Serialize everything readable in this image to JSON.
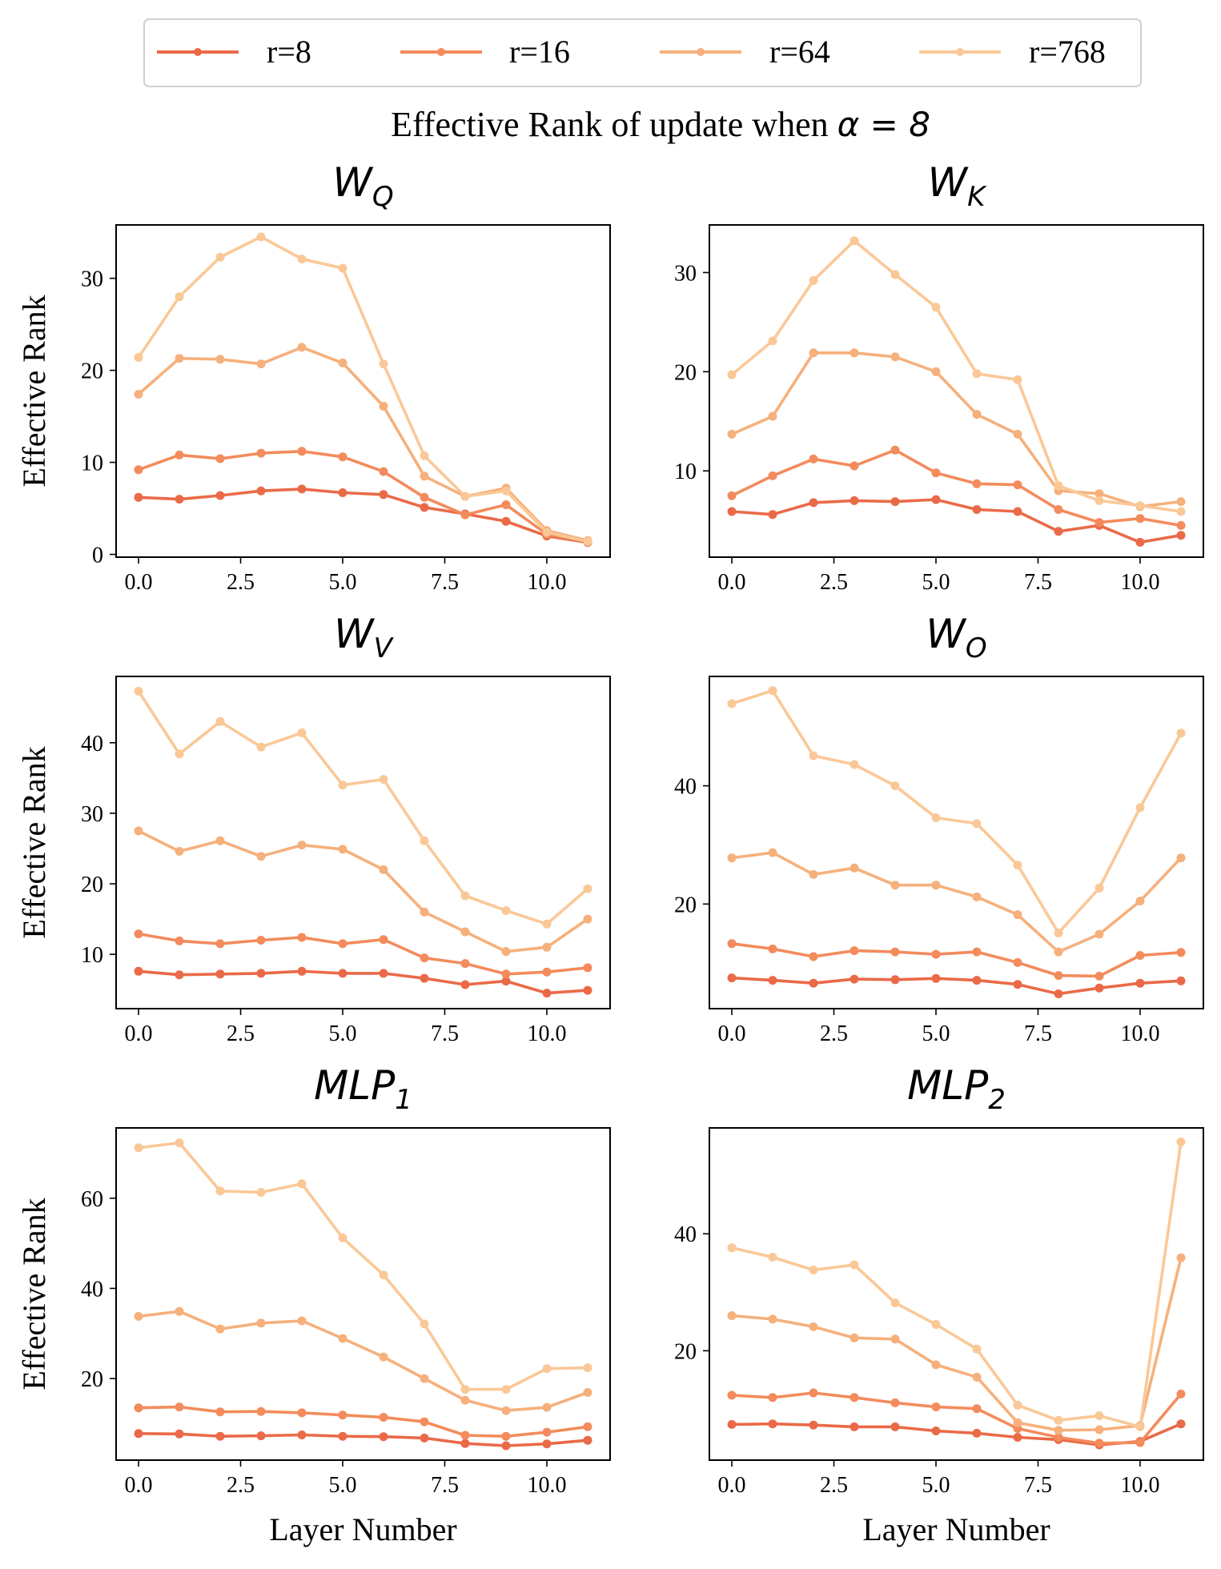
{
  "figure": {
    "title_prefix": "Effective Rank of update when ",
    "title_math": "α = 8"
  },
  "legend": {
    "position": "top-center",
    "entries": [
      {
        "label": "r=8",
        "color": "#ea6a48"
      },
      {
        "label": "r=16",
        "color": "#f38b5c"
      },
      {
        "label": "r=64",
        "color": "#f6b07c"
      },
      {
        "label": "r=768",
        "color": "#fac897"
      }
    ]
  },
  "chart_data": [
    {
      "type": "line",
      "title_base": "W",
      "title_sub": "Q",
      "xlabel": "",
      "ylabel": "Effective Rank",
      "x": [
        0,
        1,
        2,
        3,
        4,
        5,
        6,
        7,
        8,
        9,
        10,
        11
      ],
      "xticks": [
        0,
        2.5,
        5,
        7.5,
        10
      ],
      "xtick_labels": [
        "0.0",
        "2.5",
        "5.0",
        "7.5",
        "10.0"
      ],
      "xlim": [
        -0.55,
        11.55
      ],
      "ylim": [
        -0.3,
        35.8
      ],
      "yticks": [
        0,
        10,
        20,
        30
      ],
      "ytick_labels": [
        "0",
        "10",
        "20",
        "30"
      ],
      "series": [
        {
          "name": "r=8",
          "values": [
            6.2,
            6.0,
            6.4,
            6.9,
            7.1,
            6.7,
            6.5,
            5.1,
            4.4,
            3.6,
            2.0,
            1.3
          ]
        },
        {
          "name": "r=16",
          "values": [
            9.2,
            10.8,
            10.4,
            11.0,
            11.2,
            10.6,
            9.0,
            6.2,
            4.3,
            5.4,
            2.2,
            1.4
          ]
        },
        {
          "name": "r=64",
          "values": [
            17.4,
            21.3,
            21.2,
            20.7,
            22.5,
            20.8,
            16.1,
            8.5,
            6.3,
            7.2,
            2.6,
            1.5
          ]
        },
        {
          "name": "r=768",
          "values": [
            21.4,
            28.0,
            32.3,
            34.5,
            32.1,
            31.1,
            20.7,
            10.7,
            6.3,
            6.9,
            2.4,
            1.4
          ]
        }
      ]
    },
    {
      "type": "line",
      "title_base": "W",
      "title_sub": "K",
      "xlabel": "",
      "ylabel": "",
      "x": [
        0,
        1,
        2,
        3,
        4,
        5,
        6,
        7,
        8,
        9,
        10,
        11
      ],
      "xticks": [
        0,
        2.5,
        5,
        7.5,
        10
      ],
      "xtick_labels": [
        "0.0",
        "2.5",
        "5.0",
        "7.5",
        "10.0"
      ],
      "xlim": [
        -0.55,
        11.55
      ],
      "ylim": [
        1.3,
        34.8
      ],
      "yticks": [
        10,
        20,
        30
      ],
      "ytick_labels": [
        "10",
        "20",
        "30"
      ],
      "series": [
        {
          "name": "r=8",
          "values": [
            5.9,
            5.6,
            6.8,
            7.0,
            6.9,
            7.1,
            6.1,
            5.9,
            3.9,
            4.5,
            2.8,
            3.5
          ]
        },
        {
          "name": "r=16",
          "values": [
            7.5,
            9.5,
            11.2,
            10.5,
            12.1,
            9.8,
            8.7,
            8.6,
            6.1,
            4.8,
            5.2,
            4.5
          ]
        },
        {
          "name": "r=64",
          "values": [
            13.7,
            15.5,
            21.9,
            21.9,
            21.5,
            20.0,
            15.7,
            13.7,
            8.0,
            7.7,
            6.4,
            6.9
          ]
        },
        {
          "name": "r=768",
          "values": [
            19.7,
            23.1,
            29.2,
            33.2,
            29.8,
            26.5,
            19.8,
            19.2,
            8.5,
            7.0,
            6.5,
            5.9
          ]
        }
      ]
    },
    {
      "type": "line",
      "title_base": "W",
      "title_sub": "V",
      "xlabel": "",
      "ylabel": "Effective Rank",
      "x": [
        0,
        1,
        2,
        3,
        4,
        5,
        6,
        7,
        8,
        9,
        10,
        11
      ],
      "xticks": [
        0,
        2.5,
        5,
        7.5,
        10
      ],
      "xtick_labels": [
        "0.0",
        "2.5",
        "5.0",
        "7.5",
        "10.0"
      ],
      "xlim": [
        -0.55,
        11.55
      ],
      "ylim": [
        2.3,
        49.4
      ],
      "yticks": [
        10,
        20,
        30,
        40
      ],
      "ytick_labels": [
        "10",
        "20",
        "30",
        "40"
      ],
      "series": [
        {
          "name": "r=8",
          "values": [
            7.6,
            7.1,
            7.2,
            7.3,
            7.6,
            7.3,
            7.3,
            6.6,
            5.7,
            6.2,
            4.5,
            4.9
          ]
        },
        {
          "name": "r=16",
          "values": [
            12.9,
            11.9,
            11.5,
            12.0,
            12.4,
            11.5,
            12.1,
            9.5,
            8.7,
            7.2,
            7.5,
            8.1
          ]
        },
        {
          "name": "r=64",
          "values": [
            27.5,
            24.6,
            26.1,
            23.9,
            25.5,
            24.9,
            22.0,
            16.0,
            13.2,
            10.4,
            11.0,
            15.0
          ]
        },
        {
          "name": "r=768",
          "values": [
            47.3,
            38.4,
            43.0,
            39.4,
            41.4,
            34.0,
            34.8,
            26.1,
            18.3,
            16.2,
            14.3,
            19.3
          ]
        }
      ]
    },
    {
      "type": "line",
      "title_base": "W",
      "title_sub": "O",
      "xlabel": "",
      "ylabel": "",
      "x": [
        0,
        1,
        2,
        3,
        4,
        5,
        6,
        7,
        8,
        9,
        10,
        11
      ],
      "xticks": [
        0,
        2.5,
        5,
        7.5,
        10
      ],
      "xtick_labels": [
        "0.0",
        "2.5",
        "5.0",
        "7.5",
        "10.0"
      ],
      "xlim": [
        -0.55,
        11.55
      ],
      "ylim": [
        2.3,
        58.5
      ],
      "yticks": [
        20,
        40
      ],
      "ytick_labels": [
        "20",
        "40"
      ],
      "series": [
        {
          "name": "r=8",
          "values": [
            7.5,
            7.1,
            6.6,
            7.3,
            7.2,
            7.4,
            7.1,
            6.4,
            4.8,
            5.8,
            6.6,
            7.0
          ]
        },
        {
          "name": "r=16",
          "values": [
            13.3,
            12.4,
            11.1,
            12.1,
            11.9,
            11.5,
            11.9,
            10.1,
            7.9,
            7.8,
            11.3,
            11.8
          ]
        },
        {
          "name": "r=64",
          "values": [
            27.8,
            28.7,
            25.0,
            26.1,
            23.2,
            23.2,
            21.2,
            18.2,
            11.9,
            14.9,
            20.5,
            27.8
          ]
        },
        {
          "name": "r=768",
          "values": [
            53.9,
            56.1,
            45.1,
            43.6,
            40.0,
            34.6,
            33.6,
            26.6,
            15.1,
            22.7,
            36.3,
            48.9
          ]
        }
      ]
    },
    {
      "type": "line",
      "title_base": "MLP",
      "title_sub": "1",
      "xlabel": "Layer Number",
      "ylabel": "Effective Rank",
      "x": [
        0,
        1,
        2,
        3,
        4,
        5,
        6,
        7,
        8,
        9,
        10,
        11
      ],
      "xticks": [
        0,
        2.5,
        5,
        7.5,
        10
      ],
      "xtick_labels": [
        "0.0",
        "2.5",
        "5.0",
        "7.5",
        "10.0"
      ],
      "xlim": [
        -0.55,
        11.55
      ],
      "ylim": [
        1.9,
        75.6
      ],
      "yticks": [
        20,
        40,
        60
      ],
      "ytick_labels": [
        "20",
        "40",
        "60"
      ],
      "series": [
        {
          "name": "r=8",
          "values": [
            7.8,
            7.7,
            7.2,
            7.3,
            7.5,
            7.2,
            7.1,
            6.8,
            5.6,
            5.1,
            5.5,
            6.3
          ]
        },
        {
          "name": "r=16",
          "values": [
            13.5,
            13.7,
            12.6,
            12.7,
            12.4,
            11.9,
            11.4,
            10.4,
            7.4,
            7.2,
            8.1,
            9.3
          ]
        },
        {
          "name": "r=64",
          "values": [
            33.8,
            34.9,
            31.0,
            32.3,
            32.8,
            28.9,
            24.8,
            20.0,
            15.2,
            12.9,
            13.6,
            16.9
          ]
        },
        {
          "name": "r=768",
          "values": [
            71.2,
            72.3,
            61.6,
            61.3,
            63.2,
            51.2,
            43.0,
            32.1,
            17.6,
            17.6,
            22.2,
            22.4
          ]
        }
      ]
    },
    {
      "type": "line",
      "title_base": "MLP",
      "title_sub": "2",
      "xlabel": "Layer Number",
      "ylabel": "",
      "x": [
        0,
        1,
        2,
        3,
        4,
        5,
        6,
        7,
        8,
        9,
        10,
        11
      ],
      "xticks": [
        0,
        2.5,
        5,
        7.5,
        10
      ],
      "xtick_labels": [
        "0.0",
        "2.5",
        "5.0",
        "7.5",
        "10.0"
      ],
      "xlim": [
        -0.55,
        11.55
      ],
      "ylim": [
        1.3,
        58.1
      ],
      "yticks": [
        20,
        40
      ],
      "ytick_labels": [
        "20",
        "40"
      ],
      "series": [
        {
          "name": "r=8",
          "values": [
            7.4,
            7.5,
            7.3,
            7.0,
            7.0,
            6.3,
            5.9,
            5.2,
            4.8,
            3.9,
            4.5,
            7.5
          ]
        },
        {
          "name": "r=16",
          "values": [
            12.4,
            12.0,
            12.8,
            12.0,
            11.1,
            10.4,
            10.1,
            6.7,
            5.2,
            4.2,
            4.3,
            12.6
          ]
        },
        {
          "name": "r=64",
          "values": [
            26.0,
            25.4,
            24.1,
            22.2,
            22.0,
            17.6,
            15.5,
            7.7,
            6.4,
            6.5,
            7.2,
            35.9
          ]
        },
        {
          "name": "r=768",
          "values": [
            37.6,
            36.0,
            33.8,
            34.7,
            28.2,
            24.5,
            20.3,
            10.7,
            8.1,
            8.9,
            7.0,
            55.7
          ]
        }
      ]
    }
  ]
}
